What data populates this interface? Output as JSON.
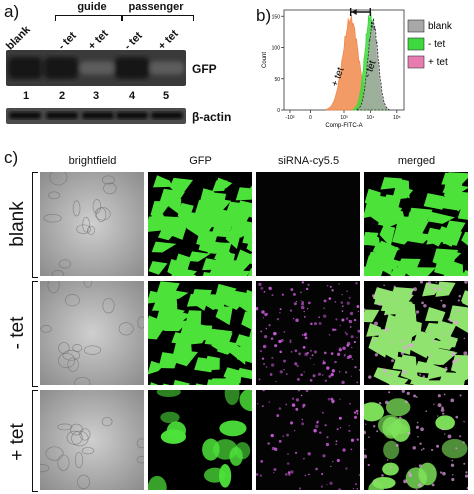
{
  "panel_a": {
    "letter": "a)",
    "groups": [
      {
        "label": "guide"
      },
      {
        "label": "passenger"
      }
    ],
    "lane_titles": [
      "blank",
      "- tet",
      "+ tet",
      "- tet",
      "+ tet"
    ],
    "lane_numbers": [
      "1",
      "2",
      "3",
      "4",
      "5"
    ],
    "gfp_label": "GFP",
    "actin_label": "β-actin",
    "gfp_band_intensity": [
      1.0,
      1.0,
      0.35,
      1.0,
      0.35
    ]
  },
  "panel_b": {
    "letter": "b)",
    "chart_data": {
      "type": "area",
      "xlabel": "Comp-FITC-A",
      "ylabel": "Count",
      "xscale": "log",
      "xlim": [
        -1000,
        100000
      ],
      "ylim": [
        0,
        160
      ],
      "yticks": [
        "0",
        "50",
        "100",
        "150"
      ],
      "xticks": [
        "-10³",
        "0",
        "10³",
        "10⁴",
        "10⁵"
      ],
      "legend": [
        {
          "name": "blank",
          "color": "#a8a8a8"
        },
        {
          "name": "- tet",
          "color": "#3ed93e"
        },
        {
          "name": "+ tet",
          "color": "#e87cb0"
        }
      ],
      "annotations": [
        "+ tet",
        "- tet"
      ],
      "series": [
        {
          "name": "+ tet",
          "color": "#f08a4b",
          "peak_x": 2500,
          "peak_y": 145
        },
        {
          "name": "- tet",
          "color": "#3ed93e",
          "peak_x": 12000,
          "peak_y": 150
        },
        {
          "name": "blank",
          "color": "#a8a8a8",
          "peak_x": 15000,
          "peak_y": 140
        }
      ]
    }
  },
  "panel_c": {
    "letter": "c)",
    "columns": [
      "brightfield",
      "GFP",
      "siRNA-cy5.5",
      "merged"
    ],
    "rows": [
      "blank",
      "- tet",
      "+ tet"
    ]
  }
}
